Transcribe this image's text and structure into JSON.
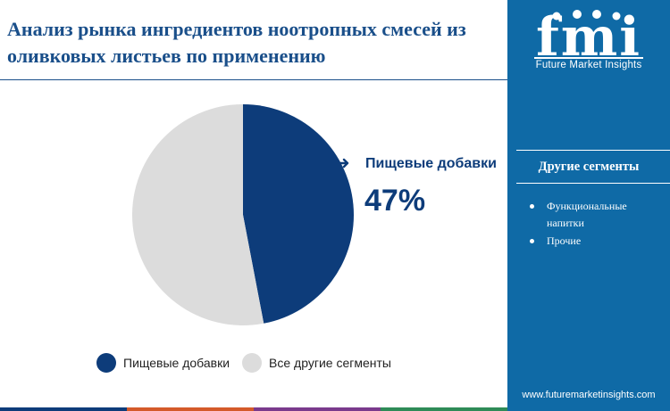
{
  "title": "Анализ рынка ингредиентов ноотропных смесей из оливковых листьев по применению",
  "brand": {
    "logo_letters": "fmi",
    "name": "Future Market Insights",
    "website": "www.futuremarketinsights.com"
  },
  "chart_data": {
    "type": "pie",
    "categories": [
      "Пищевые добавки",
      "Все другие сегменты"
    ],
    "values": [
      47,
      53
    ],
    "colors": [
      "#0d3c7a",
      "#dcdcdc"
    ],
    "highlight": {
      "label": "Пищевые добавки",
      "value_text": "47%"
    },
    "legend": {
      "position": "bottom",
      "entries": [
        "Пищевые добавки",
        "Все другие сегменты"
      ]
    }
  },
  "other_segments": {
    "title": "Другие сегменты",
    "items": [
      "Функциональные напитки",
      "Прочие"
    ]
  },
  "colors": {
    "sidebar": "#0f6aa6",
    "title": "#1a4f8a",
    "primary_segment": "#0d3c7a",
    "secondary_segment": "#dcdcdc",
    "bottom_bar": [
      "#0d3c7a",
      "#d45a2a",
      "#7a3a8c",
      "#2e8b57"
    ]
  }
}
